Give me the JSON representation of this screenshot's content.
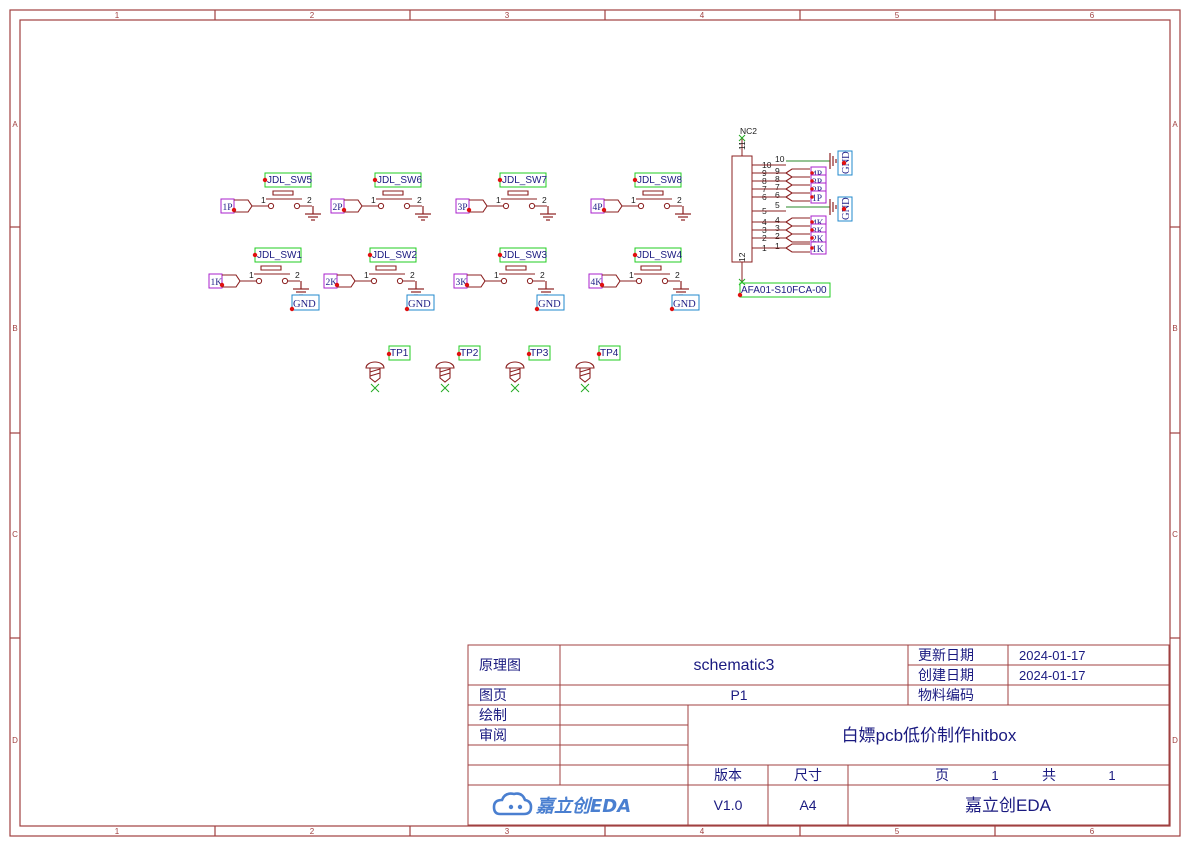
{
  "border": {
    "col_labels": [
      "1",
      "2",
      "3",
      "4",
      "5",
      "6"
    ],
    "row_labels": [
      "A",
      "B",
      "C",
      "D"
    ]
  },
  "switches": [
    {
      "ref": "JDL_SW5",
      "net": "1P",
      "ground": ""
    },
    {
      "ref": "JDL_SW6",
      "net": "2P",
      "ground": ""
    },
    {
      "ref": "JDL_SW7",
      "net": "3P",
      "ground": ""
    },
    {
      "ref": "JDL_SW8",
      "net": "4P",
      "ground": ""
    },
    {
      "ref": "JDL_SW1",
      "net": "1K",
      "ground": "GND"
    },
    {
      "ref": "JDL_SW2",
      "net": "2K",
      "ground": "GND"
    },
    {
      "ref": "JDL_SW3",
      "net": "3K",
      "ground": "GND"
    },
    {
      "ref": "JDL_SW4",
      "net": "4K",
      "ground": "GND"
    }
  ],
  "pin_numbers": {
    "left": "1",
    "right": "2"
  },
  "test_points": [
    "TP1",
    "TP2",
    "TP3",
    "TP4"
  ],
  "connector": {
    "ref": "AFA01-S10FCA-00",
    "nc_label": "NC2",
    "pins_outer": [
      "10",
      "9",
      "8",
      "7",
      "6",
      "5",
      "4",
      "3",
      "2",
      "1"
    ],
    "pins_inner": [
      "10",
      "9",
      "8",
      "7",
      "6",
      "5",
      "4",
      "3",
      "2",
      "1"
    ],
    "nets": [
      "GND",
      "4P",
      "3P",
      "2P",
      "1P",
      "GND",
      "4K",
      "3K",
      "2K",
      "1K"
    ],
    "mount_top": "11",
    "mount_bottom": "12"
  },
  "title_block": {
    "schematic_label": "原理图",
    "schematic_name": "schematic3",
    "update_date_label": "更新日期",
    "update_date": "2024-01-17",
    "create_date_label": "创建日期",
    "create_date": "2024-01-17",
    "page_label": "图页",
    "page_name": "P1",
    "material_label": "物料编码",
    "drawn_label": "绘制",
    "review_label": "审阅",
    "project_title": "白嫖pcb低价制作hitbox",
    "version_label": "版本",
    "version": "V1.0",
    "size_label": "尺寸",
    "size": "A4",
    "page_num_label": "页",
    "page_num": "1",
    "page_total_label": "共",
    "page_total": "1",
    "logo_text": "嘉立创EDA",
    "company": "嘉立创EDA"
  }
}
